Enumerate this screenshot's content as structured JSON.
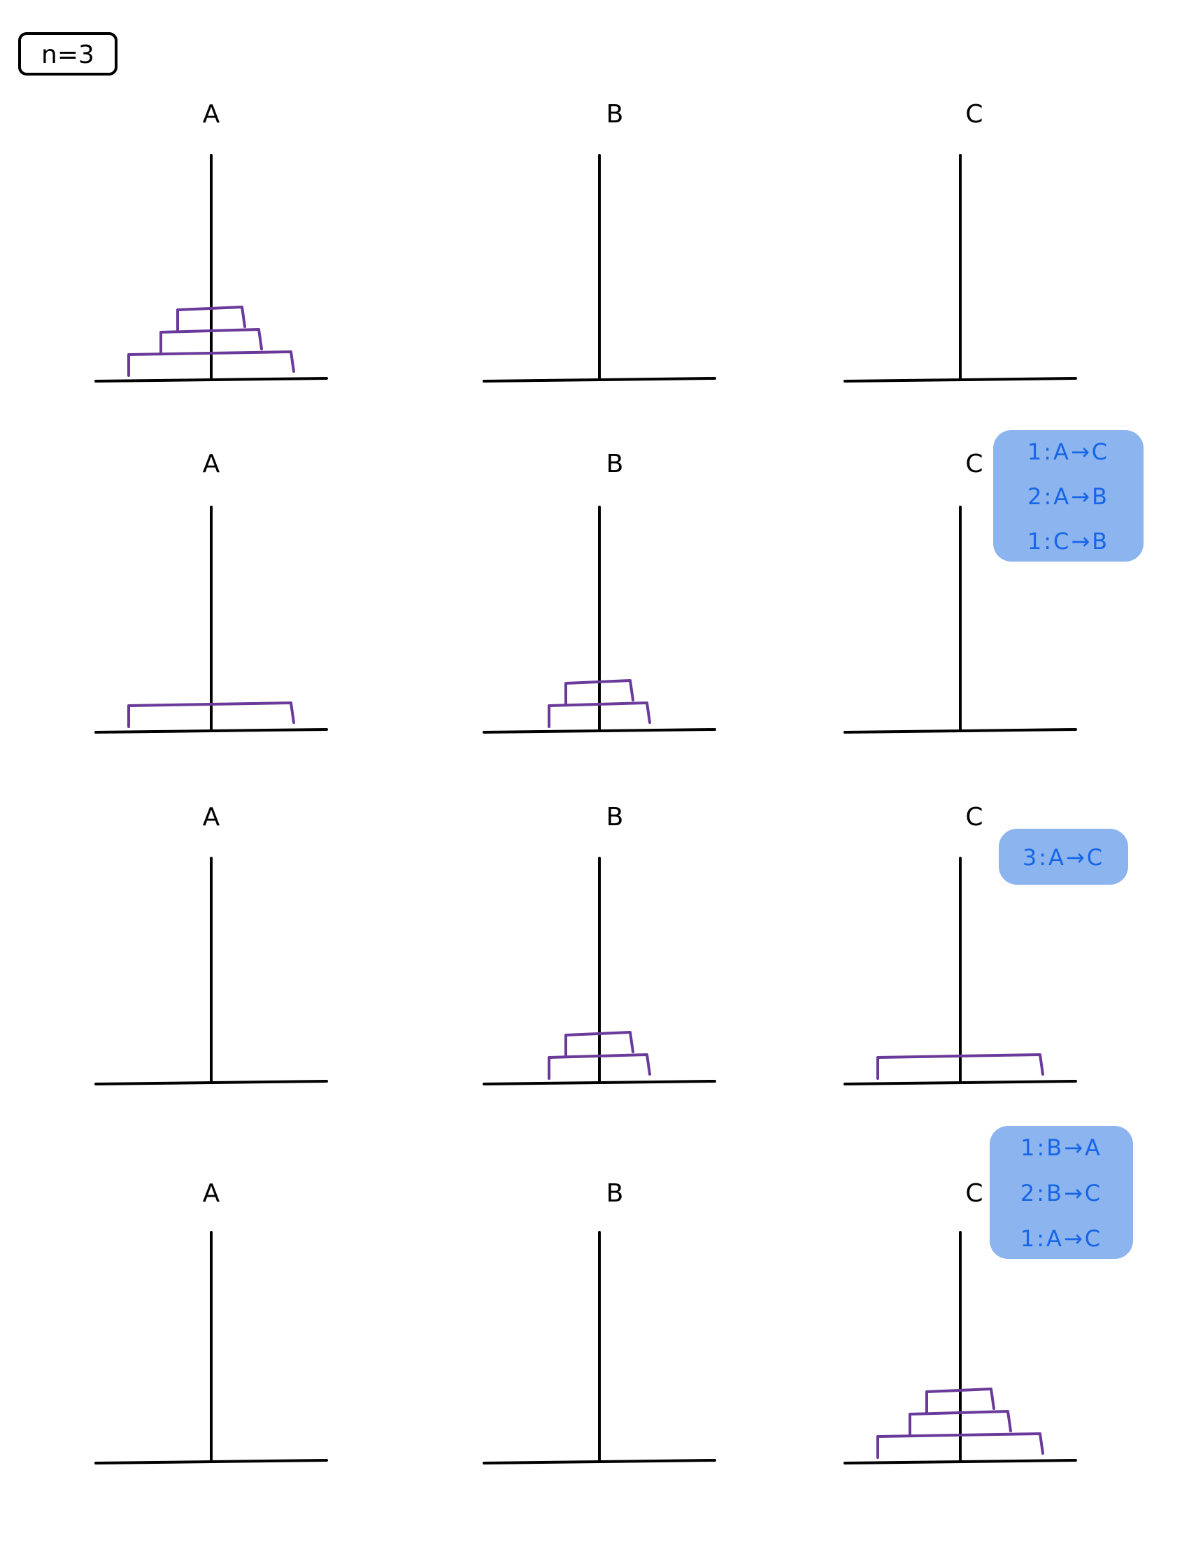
{
  "title_label": "n=3",
  "rows": [
    {
      "pegs": [
        {
          "label": "A",
          "disks": [
            3,
            2,
            1
          ]
        },
        {
          "label": "B",
          "disks": []
        },
        {
          "label": "C",
          "disks": []
        }
      ],
      "note_lines": []
    },
    {
      "pegs": [
        {
          "label": "A",
          "disks": [
            3
          ]
        },
        {
          "label": "B",
          "disks": [
            2,
            1
          ]
        },
        {
          "label": "C",
          "disks": []
        }
      ],
      "note_lines": [
        "1:A→C",
        "2:A→B",
        "1:C→B"
      ]
    },
    {
      "pegs": [
        {
          "label": "A",
          "disks": []
        },
        {
          "label": "B",
          "disks": [
            2,
            1
          ]
        },
        {
          "label": "C",
          "disks": [
            3
          ]
        }
      ],
      "note_lines": [
        "3:A→C"
      ]
    },
    {
      "pegs": [
        {
          "label": "A",
          "disks": []
        },
        {
          "label": "B",
          "disks": []
        },
        {
          "label": "C",
          "disks": [
            3,
            2,
            1
          ]
        }
      ],
      "note_lines": [
        "1:B→A",
        "2:B→C",
        "1:A→C"
      ]
    }
  ],
  "colors": {
    "ink": "#000000",
    "disk": "#6a3a9a",
    "note_bg": "#8cb4ee",
    "note_text": "#1766e8"
  }
}
